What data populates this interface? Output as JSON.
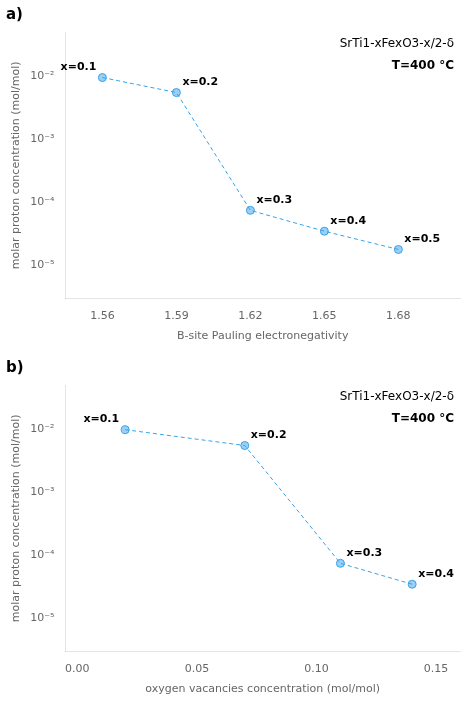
{
  "chart_data": [
    {
      "type": "scatter",
      "title": "a)",
      "x": [
        1.56,
        1.59,
        1.62,
        1.65,
        1.68
      ],
      "values": [
        0.0095,
        0.0055,
        7.5e-05,
        3.5e-05,
        1.8e-05
      ],
      "marker": "circle",
      "line_style": "dashed",
      "xlabel": "B-site Pauling electronegativity",
      "ylabel": "molar proton concentration (mol/mol)",
      "xlim": [
        1.545,
        1.705
      ],
      "xticks": [
        1.56,
        1.59,
        1.62,
        1.65,
        1.68
      ],
      "ylim": [
        3e-06,
        0.05
      ],
      "yticks": [
        {
          "value": 1e-05,
          "label": "10⁻⁵"
        },
        {
          "value": 0.0001,
          "label": "10⁻⁴"
        },
        {
          "value": 0.001,
          "label": "10⁻³"
        },
        {
          "value": 0.01,
          "label": "10⁻²"
        }
      ],
      "log": "y",
      "grid": false,
      "annotations": [
        {
          "text": "x=0.1",
          "x": 1.56,
          "y": 0.0095
        },
        {
          "text": "x=0.2",
          "x": 1.59,
          "y": 0.0055
        },
        {
          "text": "x=0.3",
          "x": 1.62,
          "y": 7.5e-05
        },
        {
          "text": "x=0.4",
          "x": 1.65,
          "y": 3.5e-05
        },
        {
          "text": "x=0.5",
          "x": 1.68,
          "y": 1.8e-05
        },
        {
          "text": "SrTi1-xFexO3-x/2-δ"
        },
        {
          "text": "T=400 °C"
        }
      ]
    },
    {
      "type": "scatter",
      "title": "b)",
      "x": [
        0.02,
        0.07,
        0.11,
        0.14
      ],
      "values": [
        0.0098,
        0.0055,
        7.5e-05,
        3.5e-05
      ],
      "marker": "circle",
      "line_style": "dashed",
      "xlabel": "oxygen vacancies concentration (mol/mol)",
      "ylabel": "molar proton concentration (mol/mol)",
      "xlim": [
        -0.005,
        0.16
      ],
      "xticks": [
        {
          "value": 0,
          "label": "0.00"
        },
        {
          "value": 0.05,
          "label": "0.05"
        },
        {
          "value": 0.1,
          "label": "0.10"
        },
        {
          "value": 0.15,
          "label": "0.15"
        }
      ],
      "ylim": [
        3e-06,
        0.05
      ],
      "yticks": [
        {
          "value": 1e-05,
          "label": "10⁻⁵"
        },
        {
          "value": 0.0001,
          "label": "10⁻⁴"
        },
        {
          "value": 0.001,
          "label": "10⁻³"
        },
        {
          "value": 0.01,
          "label": "10⁻²"
        }
      ],
      "log": "y",
      "grid": false,
      "annotations": [
        {
          "text": "x=0.1",
          "x": 0.02,
          "y": 0.0098
        },
        {
          "text": "x=0.2",
          "x": 0.07,
          "y": 0.0055
        },
        {
          "text": "x=0.3",
          "x": 0.11,
          "y": 7.5e-05
        },
        {
          "text": "x=0.4",
          "x": 0.14,
          "y": 3.5e-05
        },
        {
          "text": "SrTi1-xFexO3-x/2-δ"
        },
        {
          "text": "T=400 °C"
        }
      ]
    }
  ]
}
